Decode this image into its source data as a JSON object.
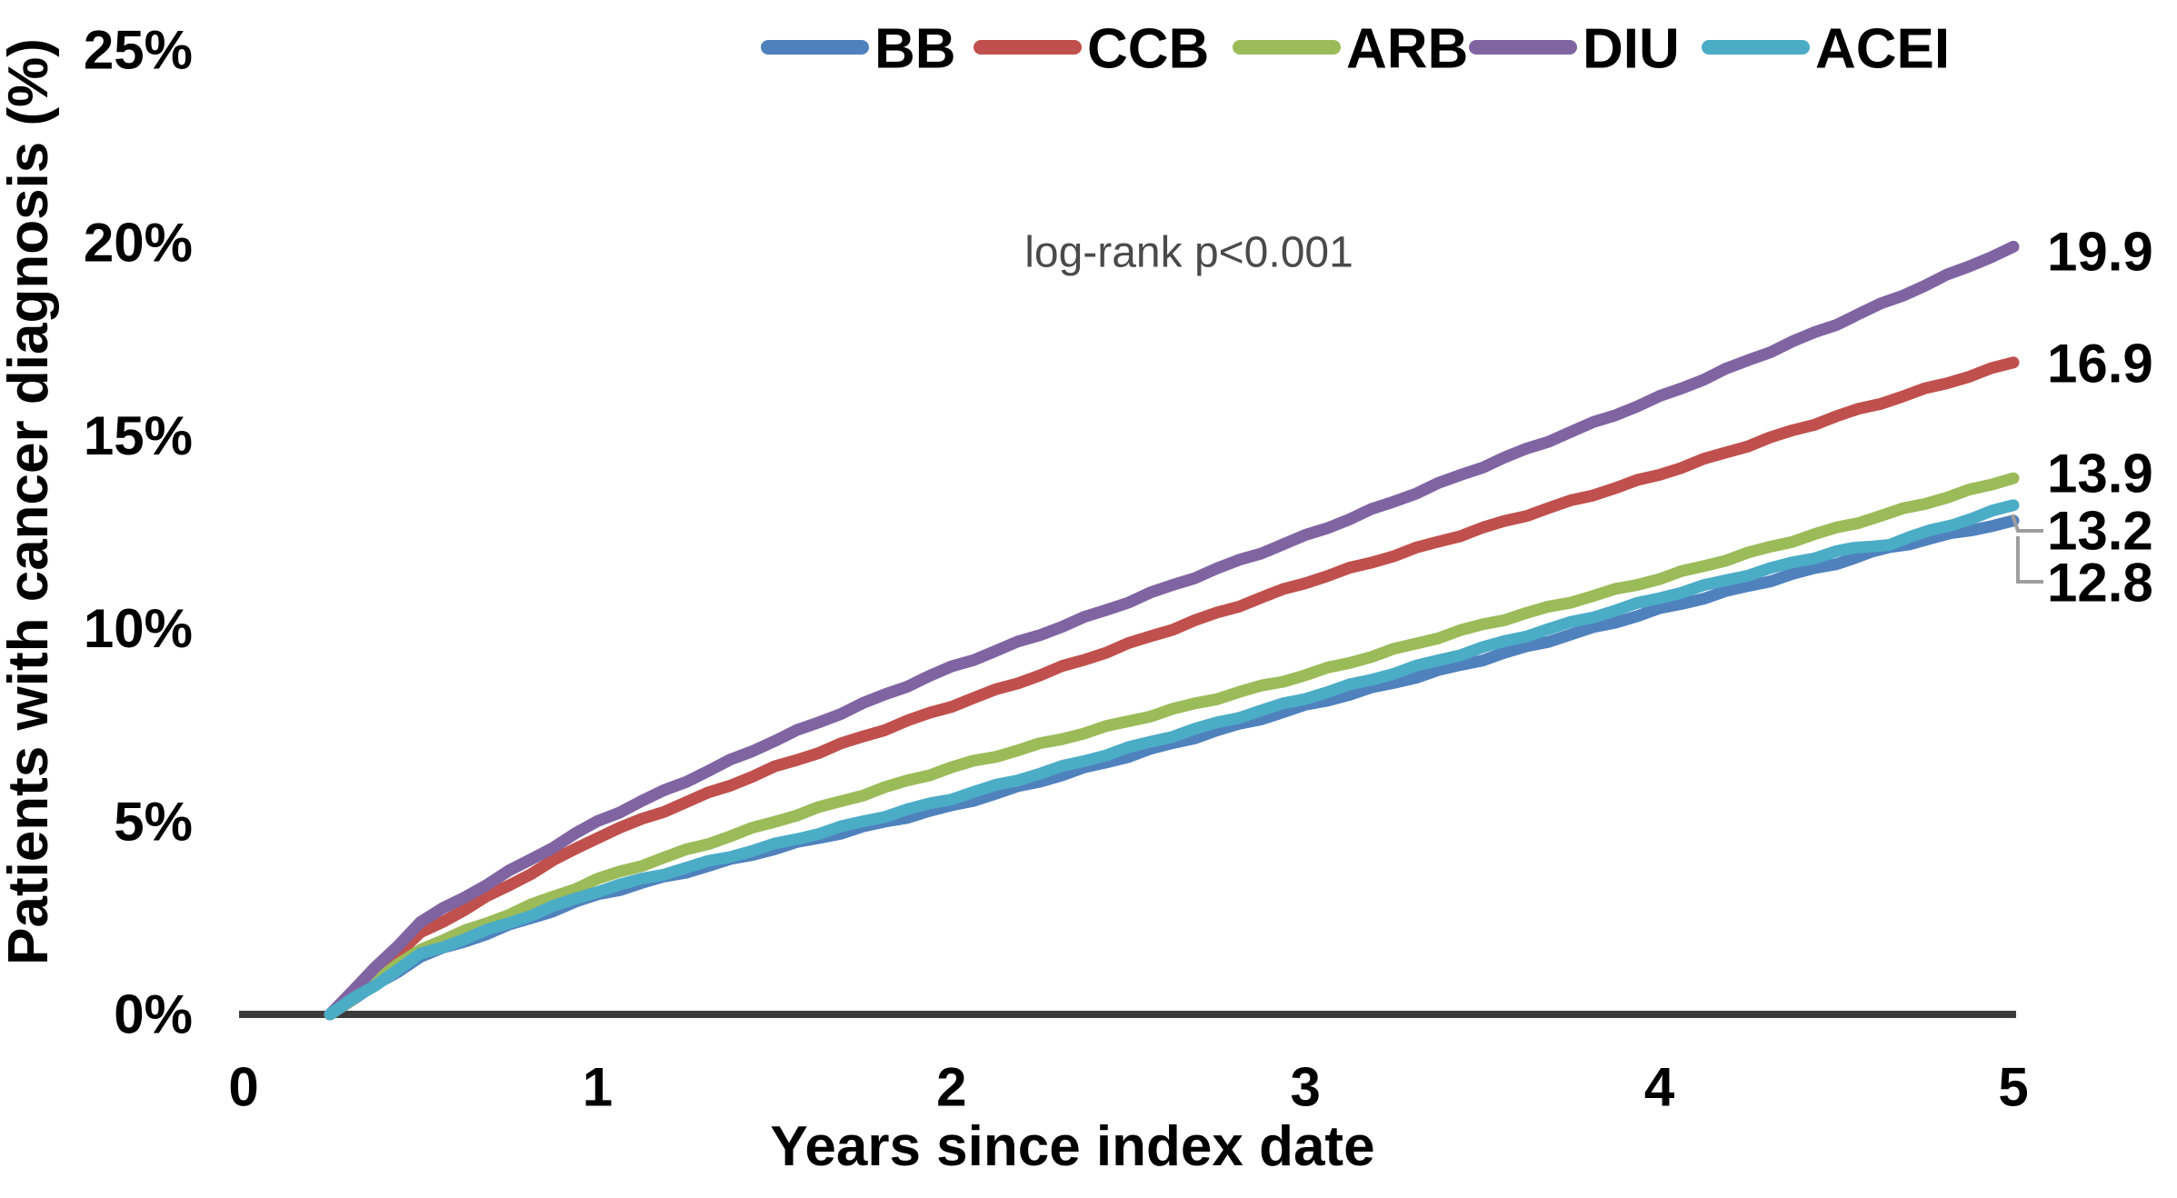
{
  "chart_data": {
    "type": "line",
    "title": "",
    "subtitle": "",
    "ylabel": "Patients with cancer diagnosis (%)",
    "xlabel": "Years since index date",
    "annotation": "log-rank p<0.001",
    "grid": false,
    "legend_position": "top",
    "xlim": [
      0,
      5
    ],
    "ylim": [
      0,
      25
    ],
    "x_ticks": [
      "0",
      "1",
      "2",
      "3",
      "4",
      "5"
    ],
    "y_ticks": [
      "0%",
      "5%",
      "10%",
      "15%",
      "20%",
      "25%"
    ],
    "axis_color": "#3c3c3c",
    "leader_line_color": "#9e9e9e",
    "series": [
      {
        "name": "BB",
        "color": "#4F81BD",
        "end_label": "12.8",
        "points": [
          [
            0.244,
            0
          ],
          [
            0.5,
            1.5
          ],
          [
            1,
            3.1
          ],
          [
            1.5,
            4.3
          ],
          [
            2,
            5.4
          ],
          [
            2.5,
            6.7
          ],
          [
            3,
            8.0
          ],
          [
            3.5,
            9.2
          ],
          [
            4,
            10.5
          ],
          [
            4.5,
            11.7
          ],
          [
            4.65,
            12.1
          ],
          [
            5,
            12.8
          ]
        ]
      },
      {
        "name": "CCB",
        "color": "#C0504D",
        "end_label": "16.9",
        "points": [
          [
            0.244,
            0
          ],
          [
            0.5,
            2.1
          ],
          [
            1,
            4.6
          ],
          [
            1.5,
            6.4
          ],
          [
            2,
            8.0
          ],
          [
            2.5,
            9.6
          ],
          [
            3,
            11.2
          ],
          [
            3.5,
            12.6
          ],
          [
            4,
            14.0
          ],
          [
            4.5,
            15.5
          ],
          [
            5,
            16.9
          ]
        ]
      },
      {
        "name": "ARB",
        "color": "#9BBB59",
        "end_label": "13.9",
        "points": [
          [
            0.244,
            0
          ],
          [
            0.5,
            1.7
          ],
          [
            1,
            3.5
          ],
          [
            1.5,
            5.0
          ],
          [
            2,
            6.4
          ],
          [
            2.5,
            7.6
          ],
          [
            3,
            8.8
          ],
          [
            3.5,
            10.1
          ],
          [
            4,
            11.3
          ],
          [
            4.5,
            12.6
          ],
          [
            5,
            13.9
          ]
        ]
      },
      {
        "name": "DIU",
        "color": "#8064A2",
        "end_label": "19.9",
        "points": [
          [
            0.244,
            0
          ],
          [
            0.5,
            2.4
          ],
          [
            1,
            5.0
          ],
          [
            1.5,
            7.1
          ],
          [
            2,
            9.0
          ],
          [
            2.5,
            10.7
          ],
          [
            3,
            12.4
          ],
          [
            3.5,
            14.2
          ],
          [
            4,
            16.0
          ],
          [
            4.5,
            17.9
          ],
          [
            5,
            19.9
          ]
        ]
      },
      {
        "name": "ACEI",
        "color": "#4BACC6",
        "end_label": "13.2",
        "points": [
          [
            0.244,
            0
          ],
          [
            0.5,
            1.55
          ],
          [
            1,
            3.2
          ],
          [
            1.5,
            4.4
          ],
          [
            2,
            5.6
          ],
          [
            2.5,
            6.9
          ],
          [
            3,
            8.2
          ],
          [
            3.5,
            9.5
          ],
          [
            4,
            10.8
          ],
          [
            4.5,
            12.0
          ],
          [
            4.65,
            12.2
          ],
          [
            5,
            13.2
          ]
        ]
      }
    ]
  }
}
